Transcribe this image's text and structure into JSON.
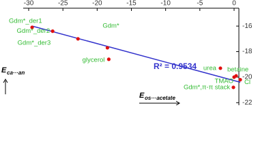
{
  "chart_data": {
    "type": "scatter",
    "categories": [
      "Gdm*_der1",
      "Gdm*_der2",
      "Gdm*_der3",
      "Gdm*",
      "glycerol",
      "urea",
      "TMAO",
      "betaine",
      "Cl",
      "Gdm*,π-π stack"
    ],
    "x": [
      -29.5,
      -26.5,
      -22.8,
      -18.5,
      -18.3,
      -2.0,
      0.0,
      0.3,
      0.9,
      -0.1
    ],
    "values": [
      -16.1,
      -16.4,
      -17.0,
      -17.7,
      -18.6,
      -19.3,
      -20.0,
      -19.9,
      -20.2,
      -20.8
    ],
    "color": "#e01010",
    "label_color": "#33bb33",
    "trendline": {
      "x": [
        -29.5,
        0.9
      ],
      "values": [
        -16.0,
        -20.4
      ],
      "color": "#3333cc"
    },
    "annotation": "R² = 0.9534",
    "x_label": {
      "main": "E",
      "sub": "os···acetate"
    },
    "y_label": {
      "main": "E",
      "sub": "ca···an"
    },
    "xlim": [
      -30.8,
      0.7
    ],
    "xticks": [
      -30,
      -25,
      -20,
      -15,
      -10,
      -5,
      0
    ],
    "ylim": [
      -22.2,
      -14.6
    ],
    "yticks": [
      -16,
      -18,
      -20,
      -22
    ]
  }
}
